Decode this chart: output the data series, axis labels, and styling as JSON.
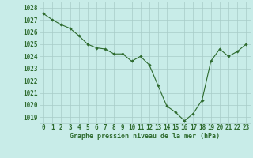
{
  "x": [
    0,
    1,
    2,
    3,
    4,
    5,
    6,
    7,
    8,
    9,
    10,
    11,
    12,
    13,
    14,
    15,
    16,
    17,
    18,
    19,
    20,
    21,
    22,
    23
  ],
  "y": [
    1027.5,
    1027.0,
    1026.6,
    1026.3,
    1025.7,
    1025.0,
    1024.7,
    1024.6,
    1024.2,
    1024.2,
    1023.6,
    1024.0,
    1023.3,
    1021.6,
    1019.9,
    1019.4,
    1018.7,
    1019.3,
    1020.4,
    1023.6,
    1024.6,
    1024.0,
    1024.4,
    1025.0
  ],
  "line_color": "#2d6a2d",
  "marker": "D",
  "marker_size": 1.8,
  "bg_color": "#c8ece8",
  "grid_color": "#a8ccc8",
  "xlabel": "Graphe pression niveau de la mer (hPa)",
  "xlabel_color": "#2d6a2d",
  "xlabel_fontsize": 6.0,
  "tick_color": "#2d6a2d",
  "tick_fontsize": 5.5,
  "ylim": [
    1018.5,
    1028.5
  ],
  "yticks": [
    1019,
    1020,
    1021,
    1022,
    1023,
    1024,
    1025,
    1026,
    1027,
    1028
  ],
  "xlim": [
    -0.5,
    23.5
  ],
  "linewidth": 0.8
}
